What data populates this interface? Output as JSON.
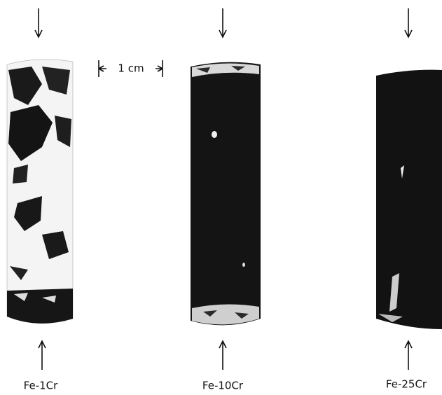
{
  "scale_bar": {
    "label": "1 cm"
  },
  "specimens": [
    {
      "label": "Fe-1Cr"
    },
    {
      "label": "Fe-10Cr"
    },
    {
      "label": "Fe-25Cr"
    }
  ]
}
